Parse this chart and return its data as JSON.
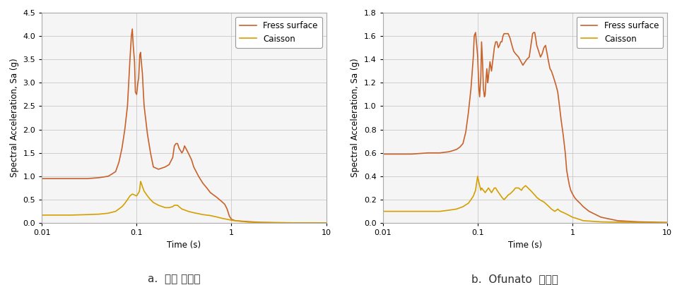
{
  "subplot_a": {
    "title": "a.  경주 지진파",
    "fress_surface_color": "#C8622A",
    "caisson_color": "#D4A000",
    "ylim": [
      0,
      4.5
    ],
    "yticks": [
      0,
      0.5,
      1.0,
      1.5,
      2.0,
      2.5,
      3.0,
      3.5,
      4.0,
      4.5
    ],
    "xlim": [
      0.01,
      10
    ],
    "xlabel": "Time (s)",
    "ylabel": "Spectral Acceleration, Sa (g)"
  },
  "subplot_b": {
    "title": "b.  Ofunato  지진파",
    "fress_surface_color": "#C8622A",
    "caisson_color": "#D4A000",
    "ylim": [
      0,
      1.8
    ],
    "yticks": [
      0,
      0.2,
      0.4,
      0.6,
      0.8,
      1.0,
      1.2,
      1.4,
      1.6,
      1.8
    ],
    "xlim": [
      0.01,
      10
    ],
    "xlabel": "Time (s)",
    "ylabel": "Spectral Acceleration, Sa (g)"
  },
  "legend_fress": "Fress surface",
  "legend_caisson": "Caisson",
  "bg_color": "#ffffff",
  "plot_bg_color": "#f5f5f5",
  "grid_color": "#c8c8c8",
  "line_width": 1.2,
  "caption_fontsize": 11,
  "label_fontsize": 8.5,
  "tick_fontsize": 8,
  "legend_fontsize": 8.5
}
